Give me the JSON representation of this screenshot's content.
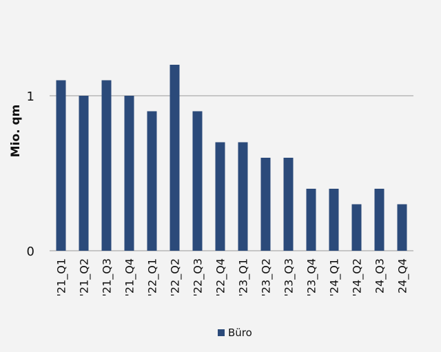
{
  "chart_data": {
    "type": "bar",
    "title": "",
    "xlabel": "",
    "ylabel": "Mio. qm",
    "ylim": [
      0,
      1.6
    ],
    "yticks": [
      0,
      1
    ],
    "grid": true,
    "legend_position": "bottom",
    "categories": [
      "'21_Q1",
      "'21_Q2",
      "'21_Q3",
      "'21_Q4",
      "'22_Q1",
      "'22_Q2",
      "'22_Q3",
      "'22_Q4",
      "'23_Q1",
      "'23_Q2",
      "'23_Q3",
      "'23_Q4",
      "'24_Q1",
      "'24_Q2",
      "24_Q3",
      "24_Q4"
    ],
    "series": [
      {
        "name": "Büro",
        "color": "#2b4a7a",
        "values": [
          1.1,
          1.0,
          1.1,
          1.0,
          0.9,
          1.2,
          0.9,
          0.7,
          0.7,
          0.6,
          0.6,
          0.4,
          0.4,
          0.3,
          0.4,
          0.3
        ]
      }
    ]
  }
}
